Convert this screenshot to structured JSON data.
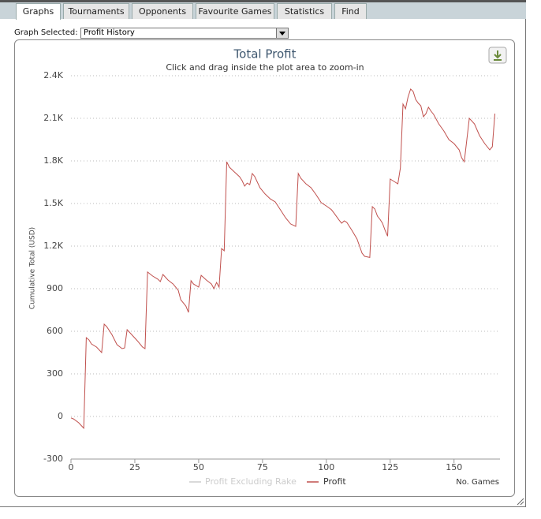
{
  "tabs": {
    "items": [
      "Graphs",
      "Tournaments",
      "Opponents",
      "Favourite Games",
      "Statistics",
      "Find"
    ],
    "active": 0
  },
  "selector": {
    "label": "Graph Selected:",
    "selected": "Profit History"
  },
  "chart_data": {
    "type": "line",
    "title": "Total Profit",
    "subtitle": "Click and drag inside the plot area to zoom-in",
    "y_label": "Cumulative Total (USD)",
    "x_label": "No. Games",
    "x": [
      0,
      1,
      3,
      5,
      6,
      7,
      8,
      10,
      12,
      13,
      14,
      16,
      18,
      20,
      21,
      22,
      24,
      26,
      28,
      29,
      30,
      32,
      34,
      35,
      36,
      38,
      40,
      42,
      43,
      45,
      46,
      47,
      48,
      50,
      51,
      53,
      55,
      56,
      57,
      58,
      59,
      60,
      61,
      62,
      64,
      66,
      67,
      68,
      69,
      70,
      71,
      72,
      74,
      76,
      78,
      80,
      82,
      84,
      86,
      88,
      89,
      90,
      92,
      94,
      96,
      98,
      100,
      102,
      103,
      105,
      106,
      107,
      108,
      110,
      112,
      113,
      114,
      115,
      117,
      118,
      119,
      120,
      121,
      122,
      123,
      124,
      125,
      126,
      127,
      128,
      129,
      130,
      131,
      132,
      133,
      134,
      135,
      136,
      137,
      138,
      139,
      140,
      141,
      142,
      144,
      146,
      148,
      150,
      152,
      153,
      154,
      156,
      158,
      160,
      162,
      164,
      165,
      166
    ],
    "series": [
      {
        "name": "Profit",
        "color": "#c0504d",
        "values": [
          -10,
          -17,
          -44,
          -83,
          555,
          540,
          511,
          489,
          450,
          650,
          633,
          578,
          506,
          478,
          483,
          611,
          572,
          533,
          489,
          478,
          1017,
          989,
          967,
          950,
          1000,
          961,
          933,
          889,
          822,
          778,
          733,
          956,
          933,
          911,
          994,
          961,
          933,
          900,
          944,
          911,
          1183,
          1167,
          1794,
          1756,
          1722,
          1689,
          1661,
          1622,
          1644,
          1633,
          1711,
          1689,
          1611,
          1567,
          1533,
          1511,
          1456,
          1400,
          1356,
          1339,
          1711,
          1678,
          1639,
          1611,
          1561,
          1506,
          1483,
          1456,
          1433,
          1383,
          1361,
          1378,
          1367,
          1311,
          1250,
          1200,
          1150,
          1128,
          1120,
          1478,
          1461,
          1411,
          1389,
          1361,
          1311,
          1270,
          1672,
          1661,
          1650,
          1639,
          1750,
          2200,
          2167,
          2250,
          2306,
          2289,
          2233,
          2206,
          2189,
          2111,
          2133,
          2178,
          2150,
          2128,
          2061,
          2011,
          1950,
          1922,
          1878,
          1822,
          1794,
          2100,
          2061,
          1978,
          1922,
          1878,
          1900,
          2133
        ]
      }
    ],
    "legend_extra": {
      "name": "Profit Excluding Rake",
      "color": "#cccccc"
    },
    "xlim": [
      0,
      168
    ],
    "xticks": [
      0,
      25,
      50,
      75,
      100,
      125,
      150
    ],
    "ylim": [
      -300,
      2400
    ],
    "yticks": [
      -300,
      0,
      300,
      600,
      900,
      {
        "value": 1200,
        "label": "1.2K"
      },
      {
        "value": 1500,
        "label": "1.5K"
      },
      {
        "value": 1800,
        "label": "1.8K"
      },
      {
        "value": 2100,
        "label": "2.1K"
      },
      {
        "value": 2400,
        "label": "2.4K"
      }
    ],
    "grid": true
  }
}
